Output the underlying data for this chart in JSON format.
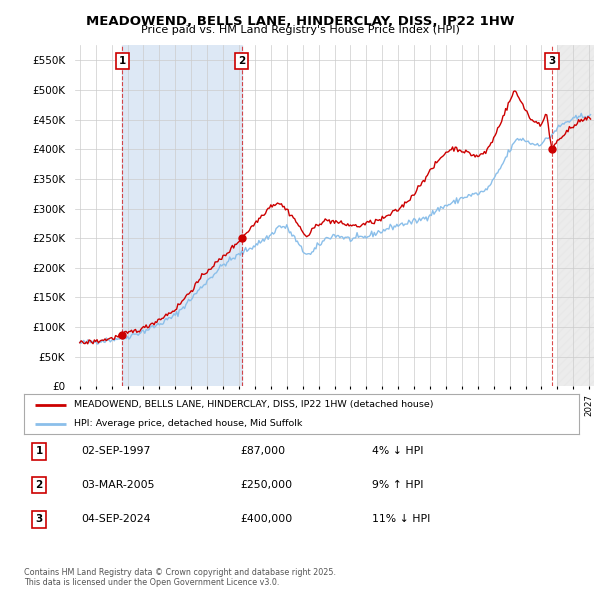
{
  "title1": "MEADOWEND, BELLS LANE, HINDERCLAY, DISS, IP22 1HW",
  "title2": "Price paid vs. HM Land Registry's House Price Index (HPI)",
  "sale_dates": [
    1997.67,
    2005.17,
    2024.67
  ],
  "sale_prices": [
    87000,
    250000,
    400000
  ],
  "sale_labels": [
    "1",
    "2",
    "3"
  ],
  "hpi_color": "#8bbfea",
  "price_color": "#cc0000",
  "legend_label_price": "MEADOWEND, BELLS LANE, HINDERCLAY, DISS, IP22 1HW (detached house)",
  "legend_label_hpi": "HPI: Average price, detached house, Mid Suffolk",
  "table_rows": [
    {
      "num": "1",
      "date": "02-SEP-1997",
      "price": "£87,000",
      "pct": "4% ↓ HPI"
    },
    {
      "num": "2",
      "date": "03-MAR-2005",
      "price": "£250,000",
      "pct": "9% ↑ HPI"
    },
    {
      "num": "3",
      "date": "04-SEP-2024",
      "price": "£400,000",
      "pct": "11% ↓ HPI"
    }
  ],
  "footer": "Contains HM Land Registry data © Crown copyright and database right 2025.\nThis data is licensed under the Open Government Licence v3.0.",
  "ylim": [
    0,
    575000
  ],
  "yticks": [
    0,
    50000,
    100000,
    150000,
    200000,
    250000,
    300000,
    350000,
    400000,
    450000,
    500000,
    550000
  ],
  "xlim_left": 1994.7,
  "xlim_right": 2027.3,
  "background_color": "#ffffff",
  "grid_color": "#cccccc",
  "shade_color": "#dde8f5",
  "hatch_color": "#e8e8e8"
}
